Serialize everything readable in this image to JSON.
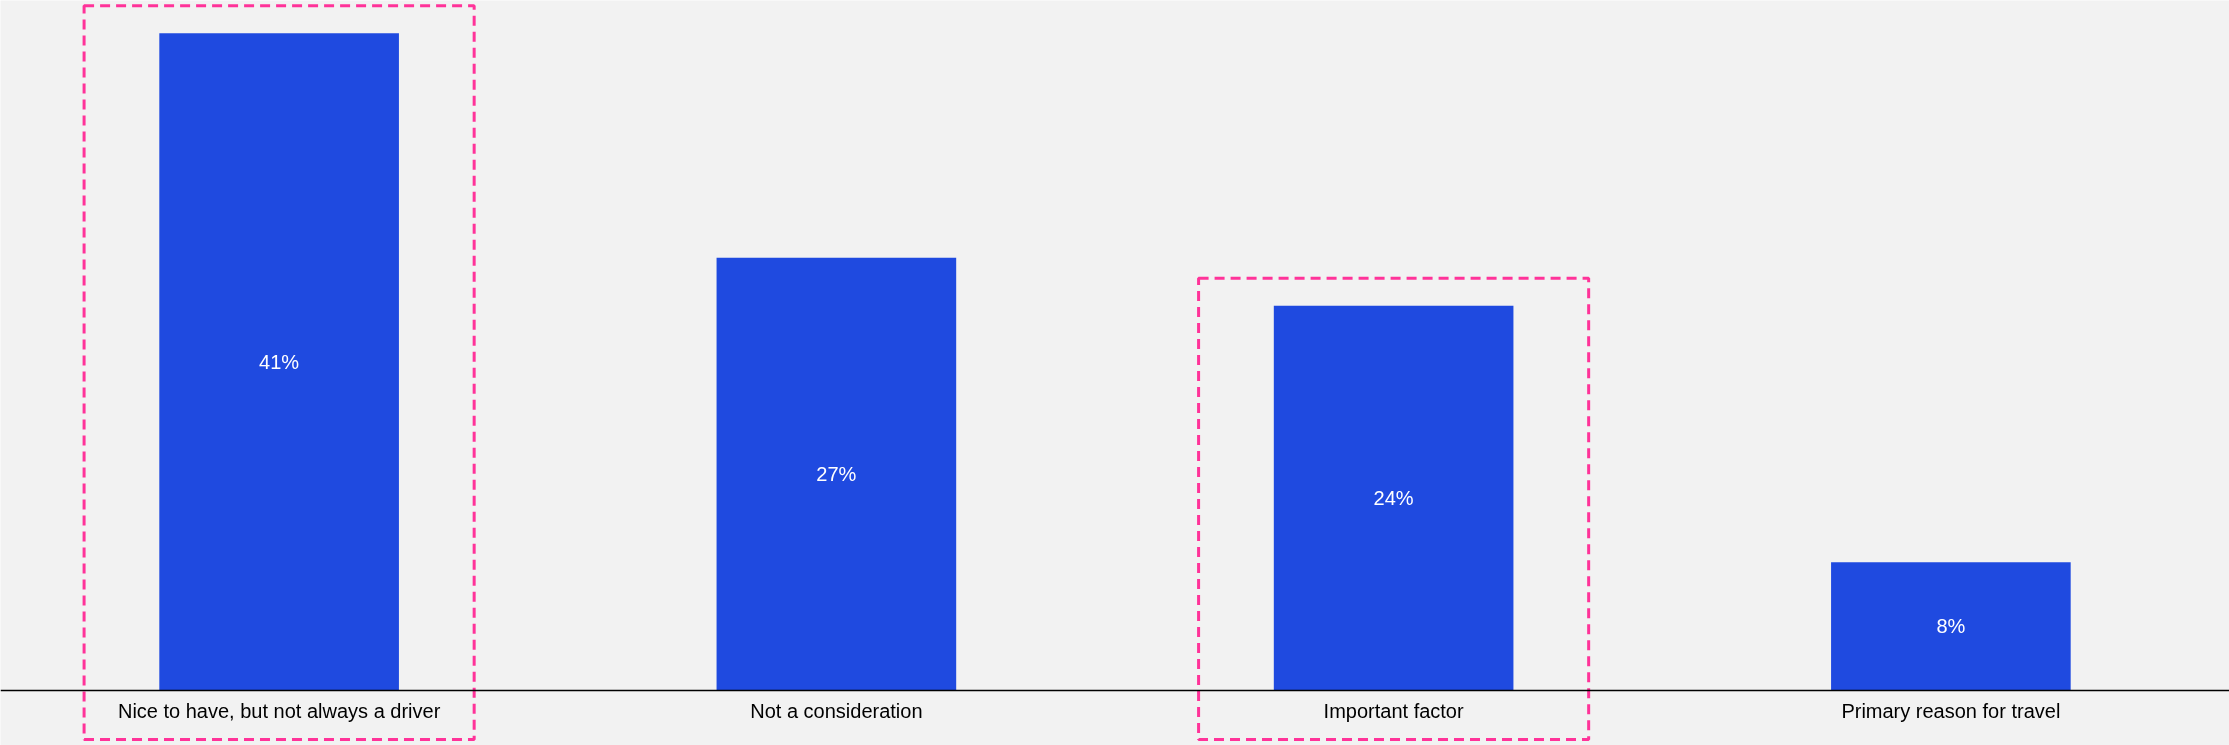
{
  "chart_data": {
    "type": "bar",
    "categories": [
      "Nice to have, but not always a driver",
      "Not a consideration",
      "Important factor",
      "Primary reason for travel"
    ],
    "values": [
      41,
      27,
      24,
      8
    ],
    "color": "#1f4ae0",
    "data_labels": true,
    "value_labels": [
      "41%",
      "27%",
      "24%",
      "8%"
    ],
    "grid": false
  }
}
